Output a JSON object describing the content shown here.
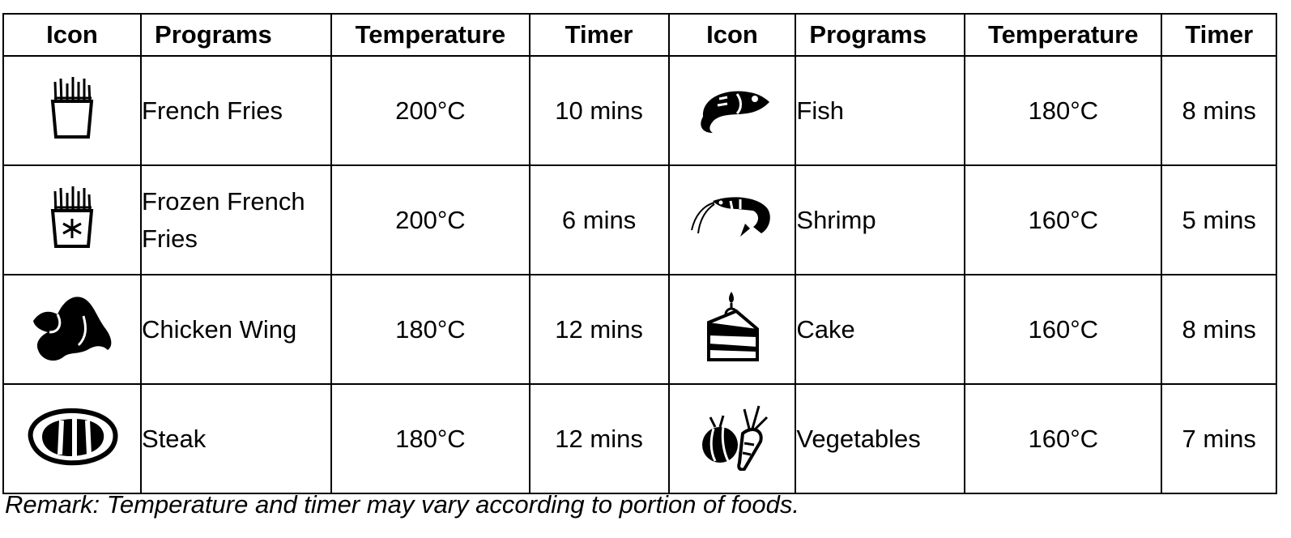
{
  "headers": [
    "Icon",
    "Programs",
    "Temperature",
    "Timer",
    "Icon",
    "Programs",
    "Temperature",
    "Timer"
  ],
  "rows": [
    {
      "left": {
        "icon": "french-fries-icon",
        "program": "French Fries",
        "temperature": "200°C",
        "timer": "10 mins"
      },
      "right": {
        "icon": "fish-icon",
        "program": "Fish",
        "temperature": "180°C",
        "timer": "8 mins"
      }
    },
    {
      "left": {
        "icon": "frozen-french-fries-icon",
        "program": "Frozen French Fries",
        "temperature": "200°C",
        "timer": "6 mins"
      },
      "right": {
        "icon": "shrimp-icon",
        "program": "Shrimp",
        "temperature": "160°C",
        "timer": "5 mins"
      }
    },
    {
      "left": {
        "icon": "chicken-wing-icon",
        "program": "Chicken Wing",
        "temperature": "180°C",
        "timer": "12 mins"
      },
      "right": {
        "icon": "cake-icon",
        "program": "Cake",
        "temperature": "160°C",
        "timer": "8 mins"
      }
    },
    {
      "left": {
        "icon": "steak-icon",
        "program": "Steak",
        "temperature": "180°C",
        "timer": "12 mins"
      },
      "right": {
        "icon": "vegetables-icon",
        "program": "Vegetables",
        "temperature": "160°C",
        "timer": "7 mins"
      }
    }
  ],
  "remark": "Remark: Temperature and timer may vary according to portion of foods."
}
